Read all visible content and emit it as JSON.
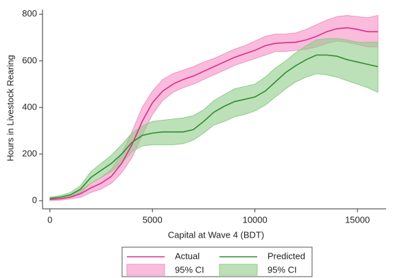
{
  "chart_data": {
    "type": "line",
    "x_label": "Capital at Wave 4 (BDT)",
    "y_label": "Hours in Livestock Rearing",
    "x": [
      0,
      500,
      1000,
      1500,
      2000,
      2500,
      3000,
      3500,
      4000,
      4500,
      5000,
      5500,
      6000,
      6500,
      7000,
      7500,
      8000,
      8500,
      9000,
      9500,
      10000,
      10500,
      11000,
      11500,
      12000,
      12500,
      13000,
      13500,
      14000,
      14500,
      15000,
      15500,
      16000
    ],
    "series": [
      {
        "name": "Actual",
        "color": "#e0288a",
        "values": [
          5,
          8,
          15,
          30,
          55,
          75,
          105,
          160,
          240,
          340,
          420,
          470,
          500,
          520,
          535,
          555,
          575,
          595,
          615,
          630,
          645,
          665,
          675,
          678,
          680,
          690,
          705,
          725,
          738,
          742,
          735,
          725,
          725
        ]
      },
      {
        "name": "Predicted",
        "color": "#2e8b2e",
        "values": [
          10,
          15,
          25,
          50,
          100,
          130,
          160,
          200,
          250,
          280,
          290,
          295,
          295,
          295,
          305,
          340,
          380,
          405,
          425,
          435,
          445,
          470,
          510,
          550,
          580,
          605,
          625,
          625,
          620,
          605,
          595,
          585,
          575
        ]
      }
    ],
    "bands": [
      {
        "name": "95% CI",
        "color": "#f590c4",
        "lower": [
          0,
          2,
          8,
          15,
          35,
          50,
          75,
          120,
          185,
          280,
          370,
          430,
          465,
          485,
          500,
          520,
          540,
          560,
          580,
          595,
          610,
          625,
          640,
          640,
          645,
          650,
          660,
          675,
          685,
          680,
          670,
          660,
          660
        ],
        "upper": [
          10,
          15,
          25,
          45,
          75,
          100,
          135,
          200,
          295,
          400,
          470,
          520,
          545,
          560,
          575,
          595,
          610,
          630,
          650,
          665,
          685,
          705,
          715,
          715,
          720,
          735,
          755,
          775,
          790,
          795,
          790,
          785,
          795
        ]
      },
      {
        "name": "95% CI",
        "color": "#8fcb88",
        "lower": [
          5,
          10,
          18,
          35,
          75,
          100,
          125,
          160,
          210,
          235,
          240,
          240,
          240,
          245,
          260,
          290,
          325,
          340,
          360,
          370,
          385,
          410,
          445,
          480,
          510,
          530,
          545,
          540,
          530,
          515,
          500,
          485,
          465
        ],
        "upper": [
          15,
          22,
          35,
          65,
          125,
          160,
          195,
          240,
          290,
          320,
          340,
          345,
          350,
          355,
          365,
          390,
          430,
          455,
          480,
          490,
          500,
          530,
          570,
          600,
          635,
          665,
          690,
          695,
          695,
          690,
          680,
          680,
          680
        ]
      }
    ],
    "xlim": [
      -360,
      16400
    ],
    "ylim": [
      -35,
      820
    ],
    "xticks": [
      0,
      5000,
      10000,
      15000
    ],
    "yticks": [
      0,
      200,
      400,
      600,
      800
    ]
  }
}
